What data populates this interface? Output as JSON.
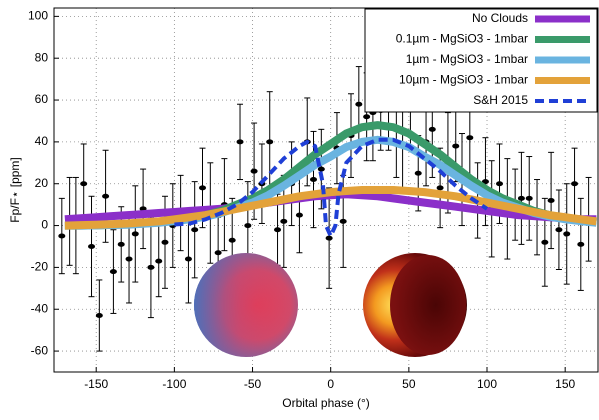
{
  "chart_data": {
    "type": "line",
    "xlabel": "Orbital phase (°)",
    "ylabel": "Fp/F⋆ [ppm]",
    "xlim": [
      -177,
      171
    ],
    "ylim": [
      -70,
      104
    ],
    "xticks": [
      -150,
      -100,
      -50,
      0,
      50,
      100,
      150
    ],
    "yticks": [
      -60,
      -40,
      -20,
      0,
      20,
      40,
      60,
      80,
      100
    ],
    "grid": true,
    "legend": "upper right",
    "series": [
      {
        "name": "No Clouds",
        "color": "#8b2fc9",
        "x": [
          -170,
          -160,
          -150,
          -140,
          -130,
          -120,
          -110,
          -100,
          -90,
          -80,
          -70,
          -60,
          -50,
          -40,
          -30,
          -20,
          -10,
          0,
          10,
          20,
          30,
          40,
          50,
          60,
          70,
          80,
          90,
          100,
          110,
          120,
          130,
          140,
          150,
          160,
          170
        ],
        "values": [
          3,
          3.5,
          4,
          4.5,
          5,
          5.5,
          6,
          6.5,
          7,
          7.5,
          8,
          9,
          10,
          11,
          12,
          13,
          14,
          14.5,
          15,
          14.5,
          14,
          13,
          12,
          11,
          10,
          9,
          8,
          7,
          6,
          5,
          4.5,
          4,
          3.5,
          3,
          3
        ]
      },
      {
        "name": "0.1µm - MgSiO3 - 1mbar",
        "color": "#3a9a6a",
        "x": [
          -170,
          -160,
          -150,
          -140,
          -130,
          -120,
          -110,
          -100,
          -90,
          -80,
          -70,
          -60,
          -50,
          -40,
          -30,
          -20,
          -10,
          0,
          10,
          20,
          30,
          40,
          50,
          60,
          70,
          80,
          90,
          100,
          110,
          120,
          130,
          140,
          150,
          160,
          170
        ],
        "values": [
          0,
          0,
          0.1,
          0.3,
          0.5,
          1,
          1.5,
          2.5,
          3.5,
          5,
          7,
          10,
          13,
          17,
          22,
          28,
          34,
          39,
          44,
          47,
          48,
          47,
          44,
          39,
          34,
          28,
          22,
          17,
          13,
          10,
          7,
          5,
          3.5,
          2.5,
          1.5
        ]
      },
      {
        "name": "1µm - MgSiO3 - 1mbar",
        "color": "#6ab4e0",
        "x": [
          -170,
          -160,
          -150,
          -140,
          -130,
          -120,
          -110,
          -100,
          -90,
          -80,
          -70,
          -60,
          -50,
          -40,
          -30,
          -20,
          -10,
          0,
          10,
          20,
          30,
          40,
          50,
          60,
          70,
          80,
          90,
          100,
          110,
          120,
          130,
          140,
          150,
          160,
          170
        ],
        "values": [
          0,
          0,
          0.1,
          0.3,
          0.4,
          0.9,
          1.3,
          2.1,
          3,
          4.3,
          6,
          8.5,
          11,
          14.5,
          19,
          24,
          29,
          33,
          37.5,
          40,
          41,
          40,
          37.5,
          33,
          29,
          24,
          19,
          14.5,
          11,
          8.5,
          6,
          4.3,
          3,
          2.1,
          1.3
        ]
      },
      {
        "name": "10µm - MgSiO3 - 1mbar",
        "color": "#e3a23a",
        "x": [
          -170,
          -160,
          -150,
          -140,
          -130,
          -120,
          -110,
          -100,
          -90,
          -80,
          -70,
          -60,
          -50,
          -40,
          -30,
          -20,
          -10,
          0,
          10,
          20,
          30,
          40,
          50,
          60,
          70,
          80,
          90,
          100,
          110,
          120,
          130,
          140,
          150,
          160,
          170
        ],
        "values": [
          0,
          0.2,
          0.4,
          0.7,
          1,
          1.5,
          2,
          3,
          4,
          5,
          6.5,
          8,
          9.5,
          11,
          12.5,
          14,
          15,
          16,
          16.5,
          17,
          17,
          17,
          16.5,
          16,
          15,
          14,
          12.5,
          11,
          9.5,
          8,
          6.5,
          5,
          4,
          3,
          2
        ]
      },
      {
        "name": "S&H 2015",
        "color": "#1f3fd6",
        "dashed": true,
        "x": [
          -100,
          -90,
          -80,
          -70,
          -60,
          -50,
          -40,
          -30,
          -20,
          -15,
          -10,
          -5,
          -3,
          0,
          3,
          5,
          10,
          20,
          30,
          40,
          50,
          60,
          70,
          80,
          90,
          100
        ],
        "values": [
          0.5,
          1,
          3,
          6,
          10,
          16,
          24,
          32,
          38,
          40,
          38,
          20,
          0,
          -5,
          0,
          15,
          30,
          38,
          41,
          41,
          38,
          32,
          26,
          19,
          13,
          8
        ]
      }
    ],
    "points": {
      "color": "#000",
      "x": [
        -172,
        -167,
        -163,
        -158,
        -153,
        -148,
        -144,
        -139,
        -134,
        -129,
        -125,
        -120,
        -115,
        -110,
        -106,
        -101,
        -96,
        -91,
        -87,
        -82,
        -77,
        -72,
        -68,
        -63,
        -58,
        -53,
        -49,
        -44,
        -39,
        -34,
        -30,
        -25,
        -20,
        -15,
        -11,
        -6,
        -1,
        4,
        8,
        13,
        18,
        23,
        27,
        32,
        37,
        42,
        46,
        51,
        56,
        61,
        65,
        70,
        75,
        80,
        84,
        89,
        94,
        99,
        103,
        108,
        113,
        118,
        122,
        127,
        132,
        137,
        141,
        146,
        151,
        156,
        160,
        165
      ],
      "values": [
        -5,
        2,
        0,
        20,
        -10,
        -43,
        14,
        -22,
        -9,
        -16,
        -4,
        8,
        -20,
        -17,
        -8,
        0,
        6,
        -16,
        -2,
        18,
        6,
        -13,
        10,
        -7,
        40,
        0,
        26,
        20,
        40,
        -2,
        2,
        20,
        5,
        40,
        22,
        27,
        -6,
        37,
        2,
        43,
        58,
        52,
        54,
        55,
        60,
        40,
        39,
        58,
        25,
        40,
        46,
        18,
        30,
        38,
        22,
        42,
        12,
        21,
        8,
        20,
        8,
        10,
        13,
        13,
        4,
        -8,
        12,
        -2,
        -4,
        20,
        -9,
        3
      ],
      "errors": [
        18,
        21,
        23,
        19,
        24,
        17,
        22,
        20,
        18,
        21,
        23,
        19,
        24,
        17,
        22,
        20,
        18,
        21,
        23,
        19,
        24,
        17,
        22,
        20,
        18,
        21,
        23,
        19,
        24,
        17,
        22,
        20,
        18,
        21,
        23,
        19,
        24,
        17,
        22,
        20,
        18,
        21,
        23,
        19,
        24,
        17,
        22,
        20,
        18,
        21,
        23,
        19,
        24,
        17,
        22,
        20,
        18,
        21,
        23,
        19,
        24,
        17,
        22,
        20,
        18,
        21,
        23,
        19,
        24,
        17,
        22,
        20
      ]
    }
  }
}
